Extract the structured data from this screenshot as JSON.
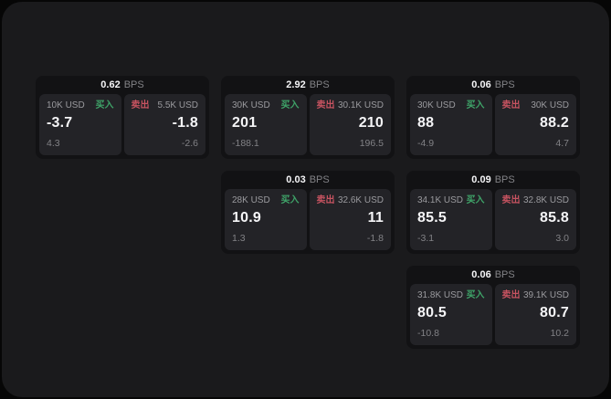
{
  "window": {
    "outer_background": "#060606",
    "background": "#1a1a1c"
  },
  "labels": {
    "bps_unit": "BPS",
    "buy": "买入",
    "sell": "卖出"
  },
  "colors": {
    "buy": "#3fa469",
    "sell": "#c65360",
    "value": "#f5f5f7",
    "muted": "#9a9a9e",
    "dim": "#828286",
    "card": "#121214",
    "panel": "#232327"
  },
  "cards": [
    {
      "bps": "0.62",
      "row": 1,
      "col": 1,
      "buy": {
        "size": "10K USD",
        "value": "-3.7",
        "sub": "4.3"
      },
      "sell": {
        "size": "5.5K USD",
        "value": "-1.8",
        "sub": "-2.6"
      }
    },
    {
      "bps": "2.92",
      "row": 1,
      "col": 2,
      "buy": {
        "size": "30K USD",
        "value": "201",
        "sub": "-188.1"
      },
      "sell": {
        "size": "30.1K USD",
        "value": "210",
        "sub": "196.5"
      }
    },
    {
      "bps": "0.06",
      "row": 1,
      "col": 3,
      "buy": {
        "size": "30K USD",
        "value": "88",
        "sub": "-4.9"
      },
      "sell": {
        "size": "30K USD",
        "value": "88.2",
        "sub": "4.7"
      }
    },
    {
      "bps": "0.03",
      "row": 2,
      "col": 2,
      "buy": {
        "size": "28K USD",
        "value": "10.9",
        "sub": "1.3"
      },
      "sell": {
        "size": "32.6K USD",
        "value": "11",
        "sub": "-1.8"
      }
    },
    {
      "bps": "0.09",
      "row": 2,
      "col": 3,
      "buy": {
        "size": "34.1K USD",
        "value": "85.5",
        "sub": "-3.1"
      },
      "sell": {
        "size": "32.8K USD",
        "value": "85.8",
        "sub": "3.0"
      }
    },
    {
      "bps": "0.06",
      "row": 3,
      "col": 3,
      "buy": {
        "size": "31.8K USD",
        "value": "80.5",
        "sub": "-10.8"
      },
      "sell": {
        "size": "39.1K USD",
        "value": "80.7",
        "sub": "10.2"
      }
    }
  ]
}
